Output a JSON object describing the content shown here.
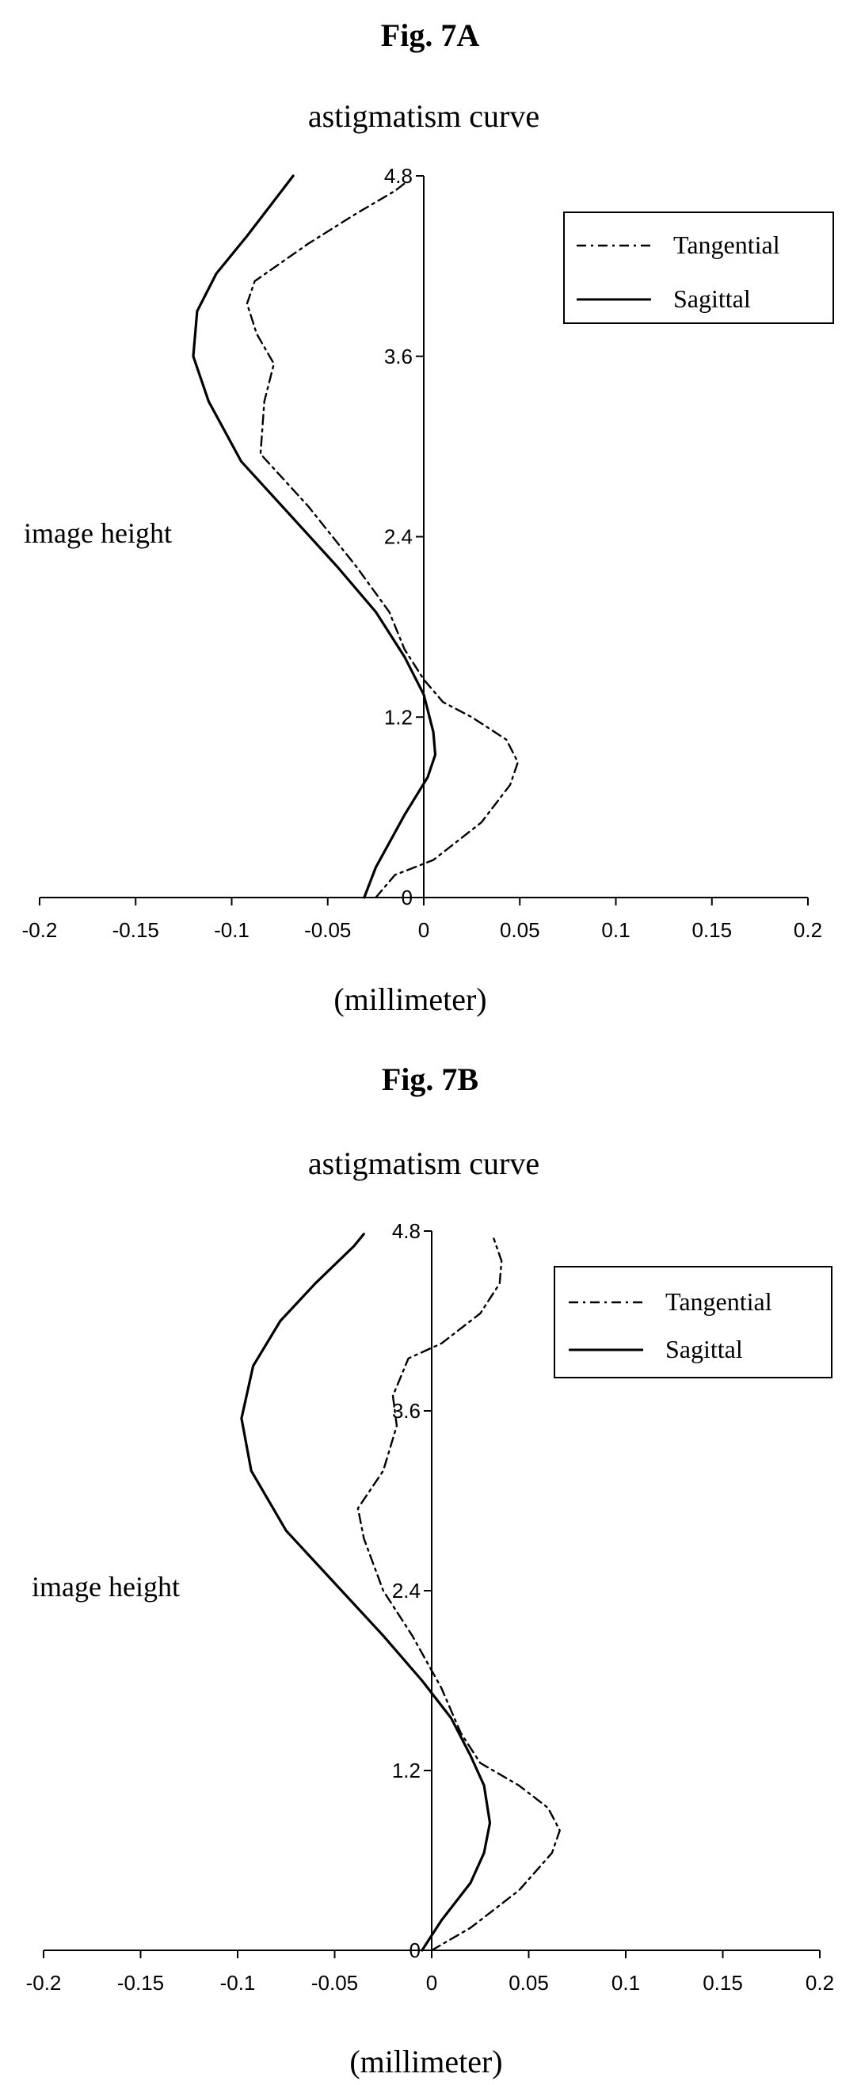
{
  "chart_data": [
    {
      "type": "line",
      "figure_label": "Fig. 7A",
      "title": "astigmatism curve",
      "xlabel": "(millimeter)",
      "ylabel": "image height",
      "xlim": [
        -0.2,
        0.2
      ],
      "ylim": [
        0,
        4.8
      ],
      "x_ticks": [
        "-0.2",
        "-0.15",
        "-0.1",
        "-0.05",
        "0",
        "0.05",
        "0.1",
        "0.15",
        "0.2"
      ],
      "y_ticks": [
        "0",
        "1.2",
        "2.4",
        "3.6",
        "4.8"
      ],
      "legend_position": "top-right",
      "grid": false,
      "series": [
        {
          "name": "Tangential",
          "style": "dash-dot",
          "points": [
            [
              -0.025,
              0.0
            ],
            [
              -0.015,
              0.15
            ],
            [
              0.005,
              0.25
            ],
            [
              0.03,
              0.5
            ],
            [
              0.045,
              0.75
            ],
            [
              0.049,
              0.9
            ],
            [
              0.043,
              1.05
            ],
            [
              0.025,
              1.2
            ],
            [
              0.01,
              1.3
            ],
            [
              0.0,
              1.45
            ],
            [
              -0.01,
              1.65
            ],
            [
              -0.018,
              1.9
            ],
            [
              -0.035,
              2.2
            ],
            [
              -0.06,
              2.6
            ],
            [
              -0.085,
              2.95
            ],
            [
              -0.083,
              3.3
            ],
            [
              -0.078,
              3.55
            ],
            [
              -0.087,
              3.75
            ],
            [
              -0.092,
              3.95
            ],
            [
              -0.088,
              4.1
            ],
            [
              -0.06,
              4.35
            ],
            [
              -0.035,
              4.55
            ],
            [
              -0.015,
              4.7
            ],
            [
              -0.01,
              4.75
            ]
          ]
        },
        {
          "name": "Sagittal",
          "style": "solid",
          "points": [
            [
              -0.031,
              0.0
            ],
            [
              -0.025,
              0.2
            ],
            [
              -0.01,
              0.55
            ],
            [
              0.002,
              0.8
            ],
            [
              0.006,
              0.95
            ],
            [
              0.005,
              1.1
            ],
            [
              0.0,
              1.35
            ],
            [
              -0.01,
              1.6
            ],
            [
              -0.025,
              1.9
            ],
            [
              -0.045,
              2.2
            ],
            [
              -0.07,
              2.55
            ],
            [
              -0.095,
              2.9
            ],
            [
              -0.112,
              3.3
            ],
            [
              -0.12,
              3.6
            ],
            [
              -0.118,
              3.9
            ],
            [
              -0.108,
              4.15
            ],
            [
              -0.092,
              4.4
            ],
            [
              -0.08,
              4.6
            ],
            [
              -0.068,
              4.8
            ]
          ]
        }
      ]
    },
    {
      "type": "line",
      "figure_label": "Fig. 7B",
      "title": "astigmatism curve",
      "xlabel": "(millimeter)",
      "ylabel": "image height",
      "xlim": [
        -0.2,
        0.2
      ],
      "ylim": [
        0,
        4.8
      ],
      "x_ticks": [
        "-0.2",
        "-0.15",
        "-0.1",
        "-0.05",
        "0",
        "0.05",
        "0.1",
        "0.15",
        "0.2"
      ],
      "y_ticks": [
        "0",
        "1.2",
        "2.4",
        "3.6",
        "4.8"
      ],
      "legend_position": "top-right",
      "grid": false,
      "series": [
        {
          "name": "Tangential",
          "style": "dash-dot",
          "points": [
            [
              0.0,
              0.0
            ],
            [
              0.02,
              0.15
            ],
            [
              0.045,
              0.4
            ],
            [
              0.062,
              0.65
            ],
            [
              0.066,
              0.8
            ],
            [
              0.06,
              0.95
            ],
            [
              0.045,
              1.1
            ],
            [
              0.025,
              1.25
            ],
            [
              0.015,
              1.45
            ],
            [
              0.005,
              1.75
            ],
            [
              -0.01,
              2.1
            ],
            [
              -0.025,
              2.4
            ],
            [
              -0.035,
              2.75
            ],
            [
              -0.038,
              2.95
            ],
            [
              -0.025,
              3.2
            ],
            [
              -0.018,
              3.5
            ],
            [
              -0.02,
              3.7
            ],
            [
              -0.012,
              3.95
            ],
            [
              0.005,
              4.05
            ],
            [
              0.025,
              4.25
            ],
            [
              0.035,
              4.45
            ],
            [
              0.036,
              4.6
            ],
            [
              0.032,
              4.75
            ]
          ]
        },
        {
          "name": "Sagittal",
          "style": "solid",
          "points": [
            [
              -0.005,
              0.0
            ],
            [
              0.005,
              0.2
            ],
            [
              0.02,
              0.45
            ],
            [
              0.027,
              0.65
            ],
            [
              0.03,
              0.85
            ],
            [
              0.027,
              1.1
            ],
            [
              0.02,
              1.3
            ],
            [
              0.01,
              1.55
            ],
            [
              -0.005,
              1.8
            ],
            [
              -0.025,
              2.1
            ],
            [
              -0.05,
              2.45
            ],
            [
              -0.075,
              2.8
            ],
            [
              -0.093,
              3.2
            ],
            [
              -0.098,
              3.55
            ],
            [
              -0.092,
              3.9
            ],
            [
              -0.078,
              4.2
            ],
            [
              -0.06,
              4.45
            ],
            [
              -0.04,
              4.7
            ],
            [
              -0.035,
              4.78
            ]
          ]
        }
      ]
    }
  ]
}
